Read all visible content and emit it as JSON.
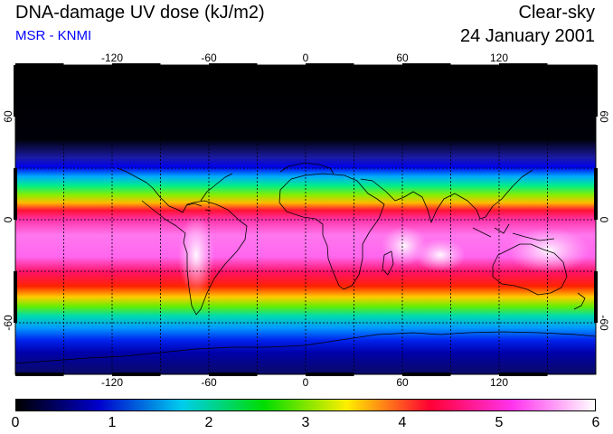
{
  "header": {
    "title": "DNA-damage UV dose (kJ/m2)",
    "subtitle": "MSR - KNMI",
    "condition": "Clear-sky",
    "date": "24 January 2001"
  },
  "axes": {
    "lon_ticks": [
      "-120",
      "-60",
      "0",
      "60",
      "120"
    ],
    "lat_ticks": [
      "60",
      "0",
      "-60"
    ],
    "lon_range": [
      -180,
      180
    ],
    "lat_range": [
      -90,
      90
    ]
  },
  "colorbar": {
    "range": [
      0,
      6
    ],
    "labels": [
      "0",
      "1",
      "2",
      "3",
      "4",
      "5",
      "6"
    ],
    "colors": [
      "#000000",
      "#0000cc",
      "#00ccee",
      "#00dd00",
      "#ffee00",
      "#ff0033",
      "#ff33ee",
      "#ffffff"
    ]
  },
  "colors": {
    "subtitle_text": "#0000ff",
    "coastline": "#000000",
    "grid": "#000000"
  }
}
